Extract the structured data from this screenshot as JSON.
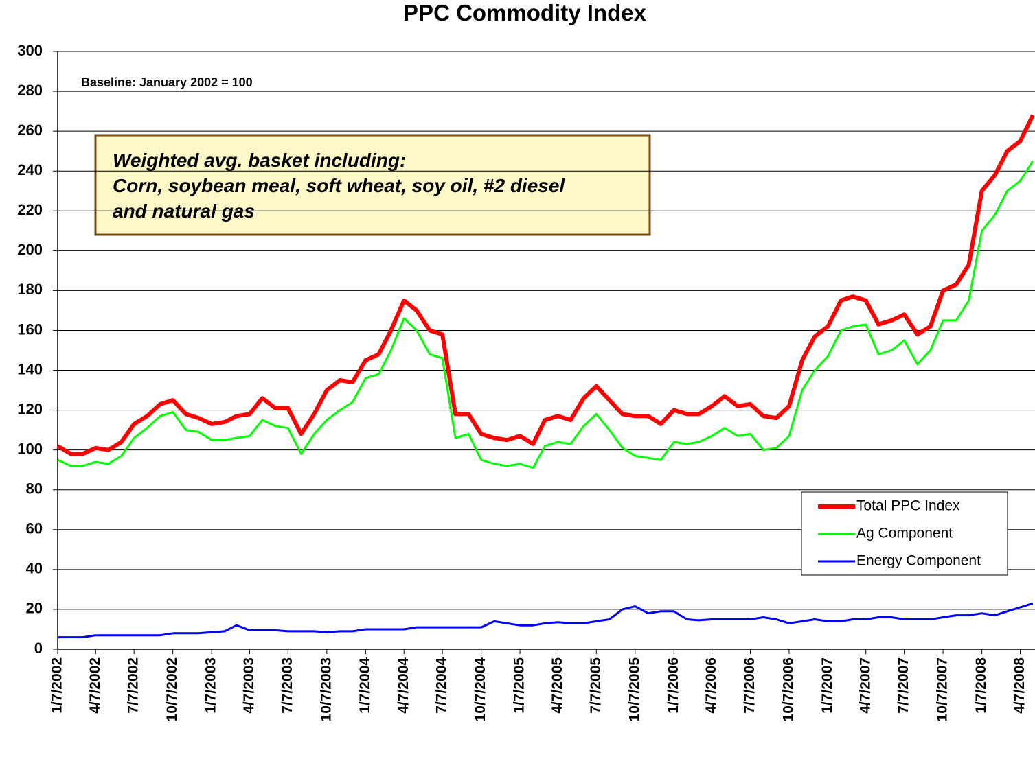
{
  "chart_data": {
    "type": "line",
    "title": "PPC Commodity Index",
    "subtitle": "Baseline: January 2002 = 100",
    "annotation": [
      "Weighted avg. basket including:",
      "Corn, soybean meal, soft wheat, soy oil, #2 diesel",
      "and natural gas"
    ],
    "x": [
      "1/7/2002",
      "2/7/2002",
      "3/7/2002",
      "4/7/2002",
      "5/7/2002",
      "6/7/2002",
      "7/7/2002",
      "8/7/2002",
      "9/7/2002",
      "10/7/2002",
      "11/7/2002",
      "12/7/2002",
      "1/7/2003",
      "2/7/2003",
      "3/7/2003",
      "4/7/2003",
      "5/7/2003",
      "6/7/2003",
      "7/7/2003",
      "8/7/2003",
      "9/7/2003",
      "10/7/2003",
      "11/7/2003",
      "12/7/2003",
      "1/7/2004",
      "2/7/2004",
      "3/7/2004",
      "4/7/2004",
      "5/7/2004",
      "6/7/2004",
      "7/7/2004",
      "8/7/2004",
      "9/7/2004",
      "10/7/2004",
      "11/7/2004",
      "12/7/2004",
      "1/7/2005",
      "2/7/2005",
      "3/7/2005",
      "4/7/2005",
      "5/7/2005",
      "6/7/2005",
      "7/7/2005",
      "8/7/2005",
      "9/7/2005",
      "10/7/2005",
      "11/7/2005",
      "12/7/2005",
      "1/7/2006",
      "2/7/2006",
      "3/7/2006",
      "4/7/2006",
      "5/7/2006",
      "6/7/2006",
      "7/7/2006",
      "8/7/2006",
      "9/7/2006",
      "10/7/2006",
      "11/7/2006",
      "12/7/2006",
      "1/7/2007",
      "2/7/2007",
      "3/7/2007",
      "4/7/2007",
      "5/7/2007",
      "6/7/2007",
      "7/7/2007",
      "8/7/2007",
      "9/7/2007",
      "10/7/2007",
      "11/7/2007",
      "12/7/2007",
      "1/7/2008",
      "2/7/2008",
      "3/7/2008",
      "4/7/2008",
      "5/7/2008"
    ],
    "series": [
      {
        "name": "Total PPC Index",
        "color": "#ff0000",
        "values": [
          102,
          98,
          98,
          101,
          100,
          104,
          113,
          117,
          123,
          125,
          118,
          116,
          113,
          114,
          117,
          118,
          126,
          121,
          121,
          108,
          118,
          130,
          135,
          134,
          145,
          148,
          160,
          175,
          170,
          160,
          158,
          118,
          118,
          108,
          106,
          105,
          107,
          103,
          115,
          117,
          115,
          126,
          132,
          125,
          118,
          117,
          117,
          113,
          120,
          118,
          118,
          122,
          127,
          122,
          123,
          117,
          116,
          122,
          145,
          157,
          162,
          175,
          177,
          175,
          163,
          165,
          168,
          158,
          162,
          180,
          183,
          193,
          230,
          238,
          250,
          255,
          268
        ]
      },
      {
        "name": "Ag Component",
        "color": "#00ff00",
        "values": [
          95,
          92,
          92,
          94,
          93,
          97,
          106,
          111,
          117,
          119,
          110,
          109,
          105,
          105,
          106,
          107,
          115,
          112,
          111,
          98,
          108,
          115,
          120,
          124,
          136,
          138,
          150,
          166,
          160,
          148,
          146,
          106,
          108,
          95,
          93,
          92,
          93,
          91,
          102,
          104,
          103,
          112,
          118,
          110,
          101,
          97,
          96,
          95,
          104,
          103,
          104,
          107,
          111,
          107,
          108,
          100,
          101,
          107,
          130,
          140,
          147,
          160,
          162,
          163,
          148,
          150,
          155,
          143,
          150,
          165,
          165,
          175,
          210,
          218,
          230,
          235,
          245
        ]
      },
      {
        "name": "Energy Component",
        "color": "#0000ff",
        "values": [
          6,
          6,
          6,
          7,
          7,
          7,
          7,
          7,
          7,
          8,
          8,
          8,
          8.5,
          9,
          12,
          9.5,
          9.5,
          9.5,
          9,
          9,
          9,
          8.5,
          9,
          9,
          10,
          10,
          10,
          10,
          11,
          11,
          11,
          11,
          11,
          11,
          14,
          13,
          12,
          12,
          13,
          13.5,
          13,
          13,
          14,
          15,
          20,
          21.5,
          18,
          19,
          19,
          15,
          14.5,
          15,
          15,
          15,
          15,
          16,
          15,
          13,
          14,
          15,
          14,
          14,
          15,
          15,
          16,
          16,
          15,
          15,
          15,
          16,
          17,
          17,
          18,
          17,
          19,
          21,
          23
        ]
      }
    ],
    "xlim": [
      "1/7/2002",
      "5/12/2008"
    ],
    "xticks": [
      "1/7/2002",
      "4/7/2002",
      "7/7/2002",
      "10/7/2002",
      "1/7/2003",
      "4/7/2003",
      "7/7/2003",
      "10/7/2003",
      "1/7/2004",
      "4/7/2004",
      "7/7/2004",
      "10/7/2004",
      "1/7/2005",
      "4/7/2005",
      "7/7/2005",
      "10/7/2005",
      "1/7/2006",
      "4/7/2006",
      "7/7/2006",
      "10/7/2006",
      "1/7/2007",
      "4/7/2007",
      "7/7/2007",
      "10/7/2007",
      "1/7/2008",
      "4/7/2008"
    ],
    "ylim": [
      0,
      300
    ],
    "yticks": [
      0,
      20,
      40,
      60,
      80,
      100,
      120,
      140,
      160,
      180,
      200,
      220,
      240,
      260,
      280,
      300
    ],
    "grid": true,
    "legend": "right"
  }
}
